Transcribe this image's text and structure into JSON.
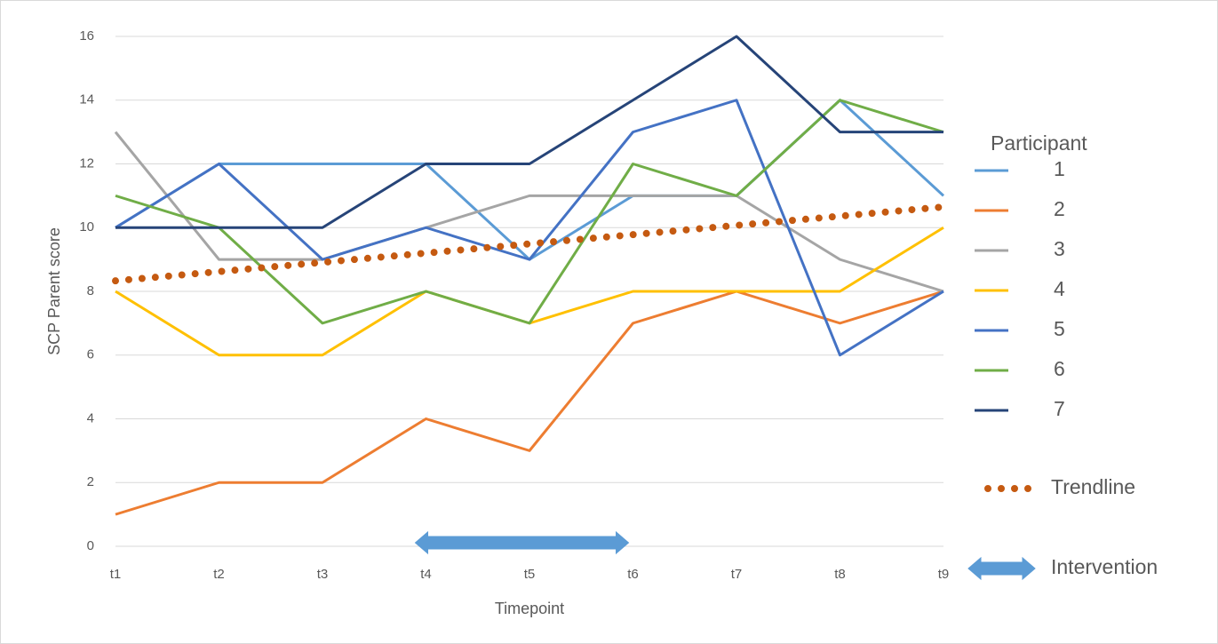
{
  "chart_data": {
    "type": "line",
    "xlabel": "Timepoint",
    "ylabel": "SCP Parent score",
    "legend_title": "Participant",
    "legend": "right",
    "categories": [
      "t1",
      "t2",
      "t3",
      "t4",
      "t5",
      "t6",
      "t7",
      "t8",
      "t9"
    ],
    "ylim": [
      0,
      16
    ],
    "yticks": [
      0,
      2,
      4,
      6,
      8,
      10,
      12,
      14,
      16
    ],
    "grid": true,
    "series": [
      {
        "name": "1",
        "color": "#5b9bd5",
        "values": [
          10,
          12,
          12,
          12,
          9,
          11,
          11,
          14,
          11
        ]
      },
      {
        "name": "2",
        "color": "#ed7d31",
        "values": [
          1,
          2,
          2,
          4,
          3,
          7,
          8,
          7,
          8
        ]
      },
      {
        "name": "3",
        "color": "#a5a5a5",
        "values": [
          13,
          9,
          9,
          10,
          11,
          11,
          11,
          9,
          8
        ]
      },
      {
        "name": "4",
        "color": "#ffc000",
        "values": [
          8,
          6,
          6,
          8,
          7,
          8,
          8,
          8,
          10
        ]
      },
      {
        "name": "5",
        "color": "#4472c4",
        "values": [
          10,
          12,
          9,
          10,
          9,
          13,
          14,
          6,
          8
        ]
      },
      {
        "name": "6",
        "color": "#70ad47",
        "values": [
          11,
          10,
          7,
          8,
          7,
          12,
          11,
          14,
          13
        ]
      },
      {
        "name": "7",
        "color": "#264478",
        "values": [
          10,
          10,
          10,
          12,
          12,
          14,
          16,
          13,
          13
        ]
      },
      {
        "name": "Trendline",
        "color": "#c55a11",
        "style": "dotted",
        "values": [
          8.33,
          8.62,
          8.91,
          9.2,
          9.49,
          9.78,
          10.07,
          10.36,
          10.65
        ]
      }
    ],
    "annotation": {
      "label": "Intervention",
      "start": "t4",
      "end": "t6",
      "color": "#5b9bd5"
    }
  }
}
